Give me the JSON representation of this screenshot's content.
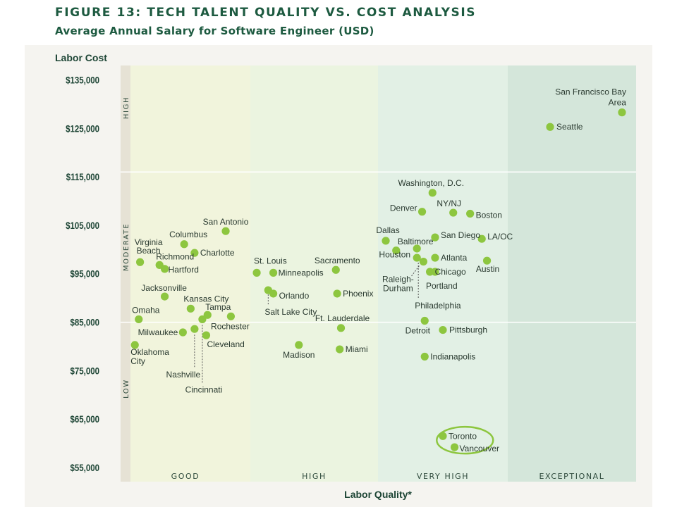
{
  "title": "FIGURE 13: TECH TALENT QUALITY VS. COST ANALYSIS",
  "subtitle": "Average Annual Salary for Software Engineer (USD)",
  "colors": {
    "point": "#8dc63f",
    "highlight": "#8dc63f",
    "title": "#1d5a40"
  },
  "chart_data": {
    "type": "scatter",
    "title": "FIGURE 13: TECH TALENT QUALITY VS. COST ANALYSIS",
    "ylabel": "Labor Cost",
    "xlabel": "Labor Quality*",
    "ylim": [
      55000,
      135000
    ],
    "xlim": [
      0,
      4
    ],
    "y_ticks": [
      135000,
      125000,
      115000,
      105000,
      95000,
      85000,
      75000,
      65000,
      55000
    ],
    "y_tick_labels": [
      "$135,000",
      "$125,000",
      "$115,000",
      "$105,000",
      "$95,000",
      "$85,000",
      "$75,000",
      "$65,000",
      "$55,000"
    ],
    "quality_bands": [
      {
        "label": "GOOD",
        "range": [
          0,
          1
        ]
      },
      {
        "label": "HIGH",
        "range": [
          1,
          2
        ]
      },
      {
        "label": "VERY HIGH",
        "range": [
          2,
          3
        ]
      },
      {
        "label": "EXCEPTIONAL",
        "range": [
          3,
          4
        ]
      }
    ],
    "cost_bands": [
      {
        "label": "HIGH",
        "range": [
          116000,
          135000
        ]
      },
      {
        "label": "MODERATE",
        "range": [
          85000,
          116000
        ]
      },
      {
        "label": "LOW",
        "range": [
          55000,
          85000
        ]
      }
    ],
    "points": [
      {
        "name": "San Francisco Bay Area",
        "x": 3.89,
        "y": 128300
      },
      {
        "name": "Seattle",
        "x": 3.33,
        "y": 125300
      },
      {
        "name": "Washington, D.C.",
        "x": 2.42,
        "y": 111700
      },
      {
        "name": "Denver",
        "x": 2.34,
        "y": 107800
      },
      {
        "name": "NY/NJ",
        "x": 2.58,
        "y": 107600
      },
      {
        "name": "Boston",
        "x": 2.71,
        "y": 107400
      },
      {
        "name": "Dallas",
        "x": 2.06,
        "y": 101800
      },
      {
        "name": "Baltimore",
        "x": 2.3,
        "y": 100200
      },
      {
        "name": "San Diego",
        "x": 2.44,
        "y": 102500
      },
      {
        "name": "LA/OC",
        "x": 2.8,
        "y": 102200
      },
      {
        "name": "Houston",
        "x": 2.14,
        "y": 99800
      },
      {
        "name": "Atlanta",
        "x": 2.44,
        "y": 98300
      },
      {
        "name": "Austin",
        "x": 2.84,
        "y": 97700
      },
      {
        "name": "Raleigh-Durham",
        "x": 2.35,
        "y": 97500
      },
      {
        "name": "Chicago",
        "x": 2.4,
        "y": 95400
      },
      {
        "name": "Portland",
        "x": 2.44,
        "y": 95400
      },
      {
        "name": "Philadelphia",
        "x": 2.3,
        "y": 98300
      },
      {
        "name": "Detroit",
        "x": 2.36,
        "y": 85300
      },
      {
        "name": "Pittsburgh",
        "x": 2.5,
        "y": 83400
      },
      {
        "name": "Indianapolis",
        "x": 2.36,
        "y": 77900
      },
      {
        "name": "Toronto",
        "x": 2.5,
        "y": 61500
      },
      {
        "name": "Vancouver",
        "x": 2.59,
        "y": 59200
      },
      {
        "name": "San Antonio",
        "x": 0.81,
        "y": 103800
      },
      {
        "name": "Columbus",
        "x": 0.49,
        "y": 101100
      },
      {
        "name": "Charlotte",
        "x": 0.57,
        "y": 99300
      },
      {
        "name": "Virginia Beach",
        "x": 0.15,
        "y": 97400
      },
      {
        "name": "Richmond",
        "x": 0.3,
        "y": 96800
      },
      {
        "name": "Hartford",
        "x": 0.34,
        "y": 96000
      },
      {
        "name": "Jacksonville",
        "x": 0.34,
        "y": 90300
      },
      {
        "name": "Kansas City",
        "x": 0.54,
        "y": 87800
      },
      {
        "name": "Tampa",
        "x": 0.67,
        "y": 86500
      },
      {
        "name": "Omaha",
        "x": 0.14,
        "y": 85600
      },
      {
        "name": "Rochester",
        "x": 0.85,
        "y": 86200
      },
      {
        "name": "Milwaukee",
        "x": 0.48,
        "y": 82900
      },
      {
        "name": "Nashville",
        "x": 0.57,
        "y": 83600
      },
      {
        "name": "Cincinnati",
        "x": 0.63,
        "y": 85600
      },
      {
        "name": "Cleveland",
        "x": 0.66,
        "y": 82300
      },
      {
        "name": "Oklahoma City",
        "x": 0.11,
        "y": 80300
      },
      {
        "name": "St. Louis",
        "x": 1.05,
        "y": 95200
      },
      {
        "name": "Minneapolis",
        "x": 1.18,
        "y": 95200
      },
      {
        "name": "Salt Lake City",
        "x": 1.14,
        "y": 91600
      },
      {
        "name": "Orlando",
        "x": 1.18,
        "y": 90900
      },
      {
        "name": "Sacramento",
        "x": 1.67,
        "y": 95800
      },
      {
        "name": "Phoenix",
        "x": 1.68,
        "y": 90900
      },
      {
        "name": "Ft. Lauderdale",
        "x": 1.71,
        "y": 83800
      },
      {
        "name": "Madison",
        "x": 1.38,
        "y": 80300
      },
      {
        "name": "Miami",
        "x": 1.7,
        "y": 79400
      }
    ],
    "highlight": [
      "Toronto",
      "Vancouver"
    ]
  }
}
